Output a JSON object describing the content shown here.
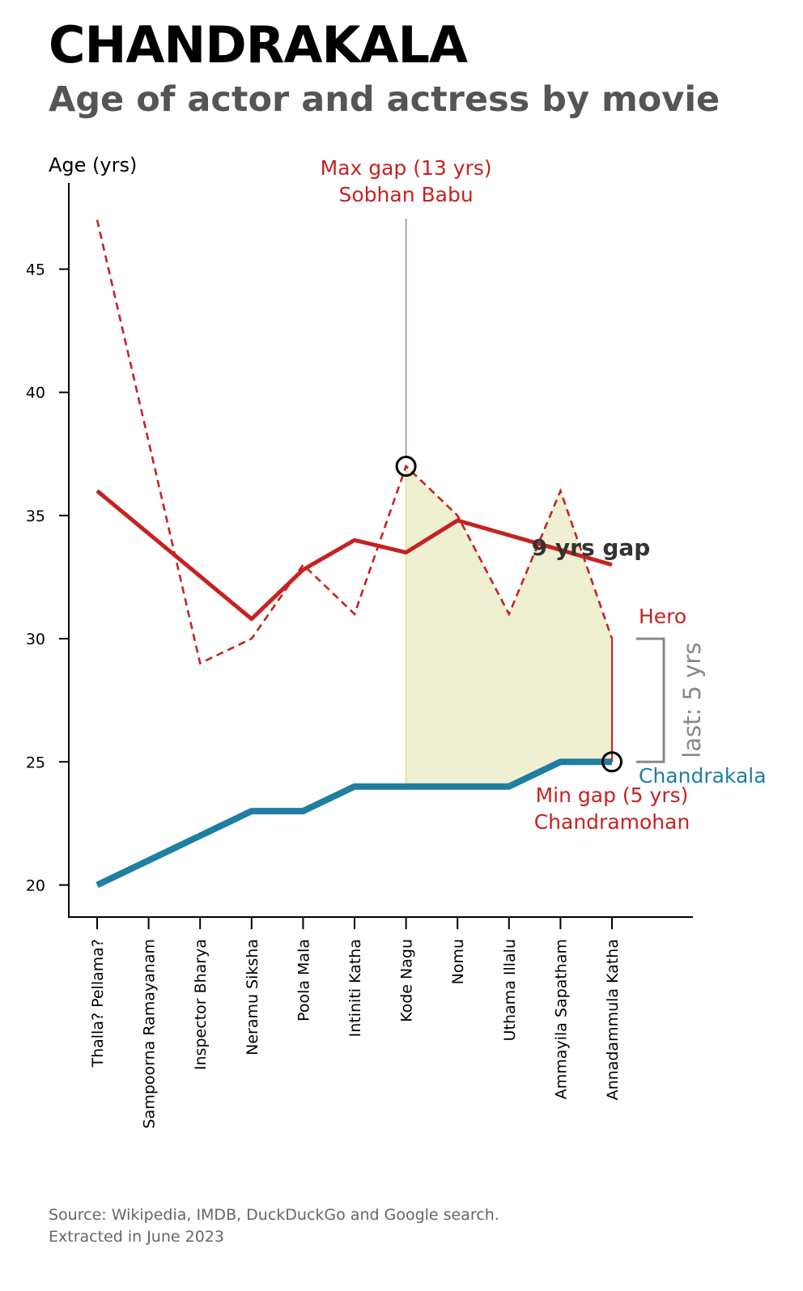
{
  "title": "CHANDRAKALA",
  "subtitle": "Age of actor and actress by movie",
  "source_line1": "Source: Wikipedia, IMDB, DuckDuckGo and Google search.",
  "source_line2": "Extracted in June 2023",
  "colors": {
    "hero": "#c62222",
    "actress": "#1f7fa0",
    "fill": "#efefd2",
    "bracket": "#888888",
    "max_line": "#7a8fa3",
    "gap_label": "#333333",
    "subtitle": "#555555",
    "source": "#666666"
  },
  "chart_data": {
    "type": "line",
    "ylabel": "Age (yrs)",
    "ylim": [
      18.7,
      48.5
    ],
    "yticks": [
      20,
      25,
      30,
      35,
      40,
      45
    ],
    "categories": [
      "Thalla? Pellama?",
      "Sampoorna Ramayanam",
      "Inspector Bharya",
      "Neramu Siksha",
      "Poola Mala",
      "Intiniti Katha",
      "Kode Nagu",
      "Nomu",
      "Uthama Illalu",
      "Ammayila Sapatham",
      "Annadammula Katha"
    ],
    "series": [
      {
        "name": "Hero",
        "style": "dashed",
        "values": [
          47,
          null,
          29,
          30,
          33,
          31,
          37,
          35,
          31,
          36,
          30
        ]
      },
      {
        "name": "Hero trend",
        "style": "solid",
        "values": [
          36,
          null,
          null,
          30.8,
          32.8,
          34,
          33.5,
          34.8,
          null,
          null,
          33
        ]
      },
      {
        "name": "Chandrakala",
        "style": "solid",
        "values": [
          20,
          21,
          22,
          23,
          23,
          24,
          24,
          24,
          24,
          25,
          25
        ]
      }
    ],
    "fill_between": {
      "from_index": 6,
      "to_index": 10
    },
    "annotations": {
      "max_gap_line1": "Max gap (13 yrs)",
      "max_gap_line2": "Sobhan Babu",
      "min_gap_line1": "Min gap (5 yrs)",
      "min_gap_line2": "Chandramohan",
      "avg_gap": "9 yrs gap",
      "last_gap": "last: 5 yrs",
      "hero_label": "Hero",
      "actress_label": "Chandrakala"
    },
    "markers": [
      {
        "series": "Hero",
        "index": 6,
        "value": 37
      },
      {
        "series": "Chandrakala",
        "index": 10,
        "value": 25
      }
    ]
  }
}
